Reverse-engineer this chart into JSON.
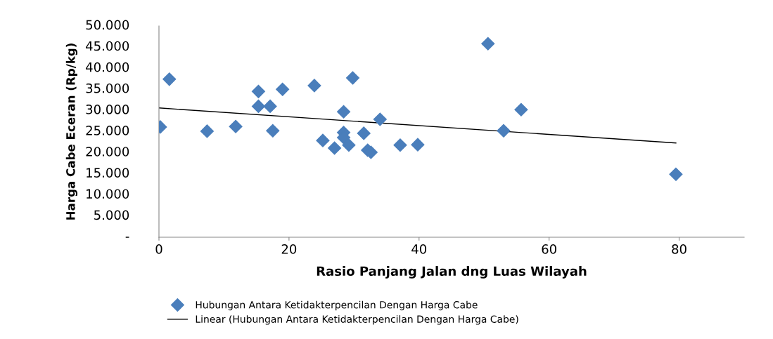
{
  "chart_data": {
    "type": "scatter",
    "xlabel": "Rasio Panjang Jalan dng Luas Wilayah",
    "ylabel": "Harga Cabe Eceran (Rp/kg)",
    "xlim": [
      0,
      90
    ],
    "xticks": [
      0,
      20,
      40,
      60,
      80
    ],
    "ylim": [
      0,
      50000
    ],
    "yticks": [
      {
        "value": 0,
        "label": "-"
      },
      {
        "value": 5000,
        "label": "5.000"
      },
      {
        "value": 10000,
        "label": "10.000"
      },
      {
        "value": 15000,
        "label": "15.000"
      },
      {
        "value": 20000,
        "label": "20.000"
      },
      {
        "value": 25000,
        "label": "25.000"
      },
      {
        "value": 30000,
        "label": "30.000"
      },
      {
        "value": 35000,
        "label": "35.000"
      },
      {
        "value": 40000,
        "label": "40.000"
      },
      {
        "value": 45000,
        "label": "45.000"
      },
      {
        "value": 50000,
        "label": "50.000"
      }
    ],
    "grid": false,
    "legend": "bottom",
    "series": [
      {
        "name": "Hubungan Antara Ketidakterpencilan Dengan Harga Cabe",
        "marker": "diamond",
        "color": "#4a7ebb",
        "x": [
          0.2,
          1.6,
          7.4,
          11.8,
          15.3,
          15.3,
          17.1,
          17.5,
          19.0,
          23.9,
          25.2,
          27.0,
          28.4,
          28.4,
          28.4,
          29.2,
          29.8,
          31.5,
          32.1,
          32.6,
          34.0,
          37.1,
          39.8,
          50.6,
          53.0,
          55.7,
          79.5
        ],
        "values": [
          26100,
          37400,
          25100,
          26200,
          34500,
          31000,
          31000,
          25200,
          35000,
          35900,
          22900,
          21100,
          29700,
          24800,
          23600,
          21800,
          37700,
          24600,
          20600,
          20100,
          27900,
          21800,
          21900,
          45800,
          25200,
          30200,
          14900
        ]
      },
      {
        "name": "Linear (Hubungan Antara Ketidakterpencilan Dengan Harga Cabe)",
        "type": "line",
        "color": "#000000",
        "x": [
          0,
          79.5
        ],
        "values": [
          30600,
          22300
        ]
      }
    ]
  }
}
